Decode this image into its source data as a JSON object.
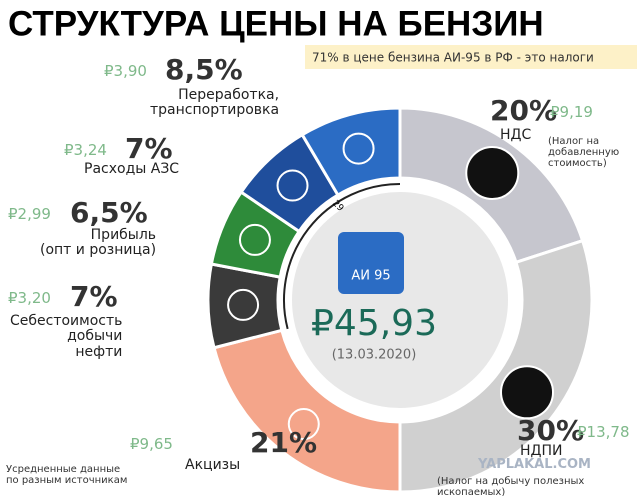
{
  "chart_data": {
    "type": "pie",
    "title": "СТРУКТУРА ЦЕНЫ НА БЕНЗИН",
    "subtitle": "71% в цене бензина АИ-95 в РФ - это налоги",
    "categories": [
      "НДС",
      "НДПИ",
      "Акцизы",
      "Себестоимость\nдобычи\nнефти",
      "Прибыль\n(опт и розница)",
      "Расходы АЗС",
      "Переработка,\nтранспортировка"
    ],
    "values": [
      20,
      30,
      21,
      7,
      6.5,
      7,
      8.5
    ],
    "value_labels": [
      "20%",
      "30%",
      "21%",
      "7%",
      "6,5%",
      "7%",
      "8,5%"
    ],
    "colors": [
      "#c6c6ce",
      "#d0d0d0",
      "#f4a58a",
      "#3a3a3a",
      "#2e8b3a",
      "#1f4e9c",
      "#2b6cc4"
    ],
    "prices": [
      9.19,
      13.78,
      9.65,
      3.2,
      2.99,
      3.24,
      3.9
    ],
    "price_labels": [
      "₽9,19",
      "₽13,78",
      "₽9,65",
      "₽3,20",
      "₽2,99",
      "₽3,24",
      "₽3,90"
    ],
    "total": 45.93,
    "total_label": "₽45,93",
    "date": "(13.03.2020)",
    "fuel_label": "АИ 95",
    "group_label": "29%",
    "annotations": [
      "(Налог на\nдобавленную\nстоимость)",
      "(Налог на добычу полезных ископаемых)",
      "Усредненные данные\nпо разным источникам"
    ],
    "watermark": "YAPLAKAL.COM"
  }
}
